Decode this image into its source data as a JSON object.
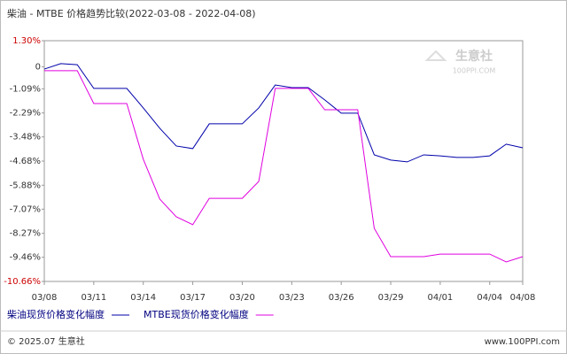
{
  "chart_data": {
    "type": "line",
    "title": "柴油 - MTBE 价格趋势比较(2022-03-08 - 2022-04-08)",
    "categories": [
      "03/08",
      null,
      null,
      "03/11",
      null,
      null,
      "03/14",
      null,
      null,
      "03/17",
      null,
      null,
      "03/20",
      null,
      null,
      "03/23",
      null,
      null,
      "03/26",
      null,
      null,
      "03/29",
      null,
      null,
      "04/01",
      null,
      null,
      "04/04",
      null,
      "04/08"
    ],
    "series": [
      {
        "name": "柴油现货价格变化幅度",
        "color": "#0000aa",
        "values": [
          -0.11,
          0.16,
          0.11,
          -1.07,
          -1.07,
          -1.07,
          -2.04,
          -3.05,
          -3.93,
          -4.06,
          -2.83,
          -2.83,
          -2.83,
          -2.04,
          -0.9,
          -1.03,
          -1.03,
          -1.64,
          -2.3,
          -2.3,
          -4.37,
          -4.63,
          -4.72,
          -4.37,
          -4.42,
          -4.5,
          -4.5,
          -4.42,
          -3.84,
          -4.02
        ]
      },
      {
        "name": "MTBE现货价格变化幅度",
        "color": "#e000e0",
        "values": [
          -0.19,
          -0.19,
          -0.19,
          -1.82,
          -1.82,
          -1.82,
          -4.59,
          -6.57,
          -7.45,
          -7.84,
          -6.53,
          -6.53,
          -6.53,
          -5.69,
          -1.07,
          -1.07,
          -1.07,
          -2.13,
          -2.13,
          -2.13,
          -8.02,
          -9.43,
          -9.43,
          -9.43,
          -9.3,
          -9.3,
          -9.3,
          -9.3,
          -9.69,
          -9.43
        ]
      }
    ],
    "ylim": [
      -10.66,
      1.3
    ],
    "yticks": [
      {
        "value": 1.3,
        "label": "1.30%"
      },
      0,
      {
        "value": -1.09,
        "label": "-1.09%"
      },
      {
        "value": -2.29,
        "label": "-2.29%"
      },
      {
        "value": -3.48,
        "label": "-3.48%"
      },
      {
        "value": -4.68,
        "label": "-4.68%"
      },
      {
        "value": -5.88,
        "label": "-5.88%"
      },
      {
        "value": -7.07,
        "label": "-7.07%"
      },
      {
        "value": -8.27,
        "label": "-8.27%"
      },
      {
        "value": -9.46,
        "label": "-9.46%"
      },
      {
        "value": -10.66,
        "label": "-10.66%"
      }
    ],
    "watermark": [
      "生意社",
      "100PPI.COM"
    ],
    "footer": {
      "left": "© 2025.07 生意社",
      "right": "www.100PPI.com"
    }
  }
}
